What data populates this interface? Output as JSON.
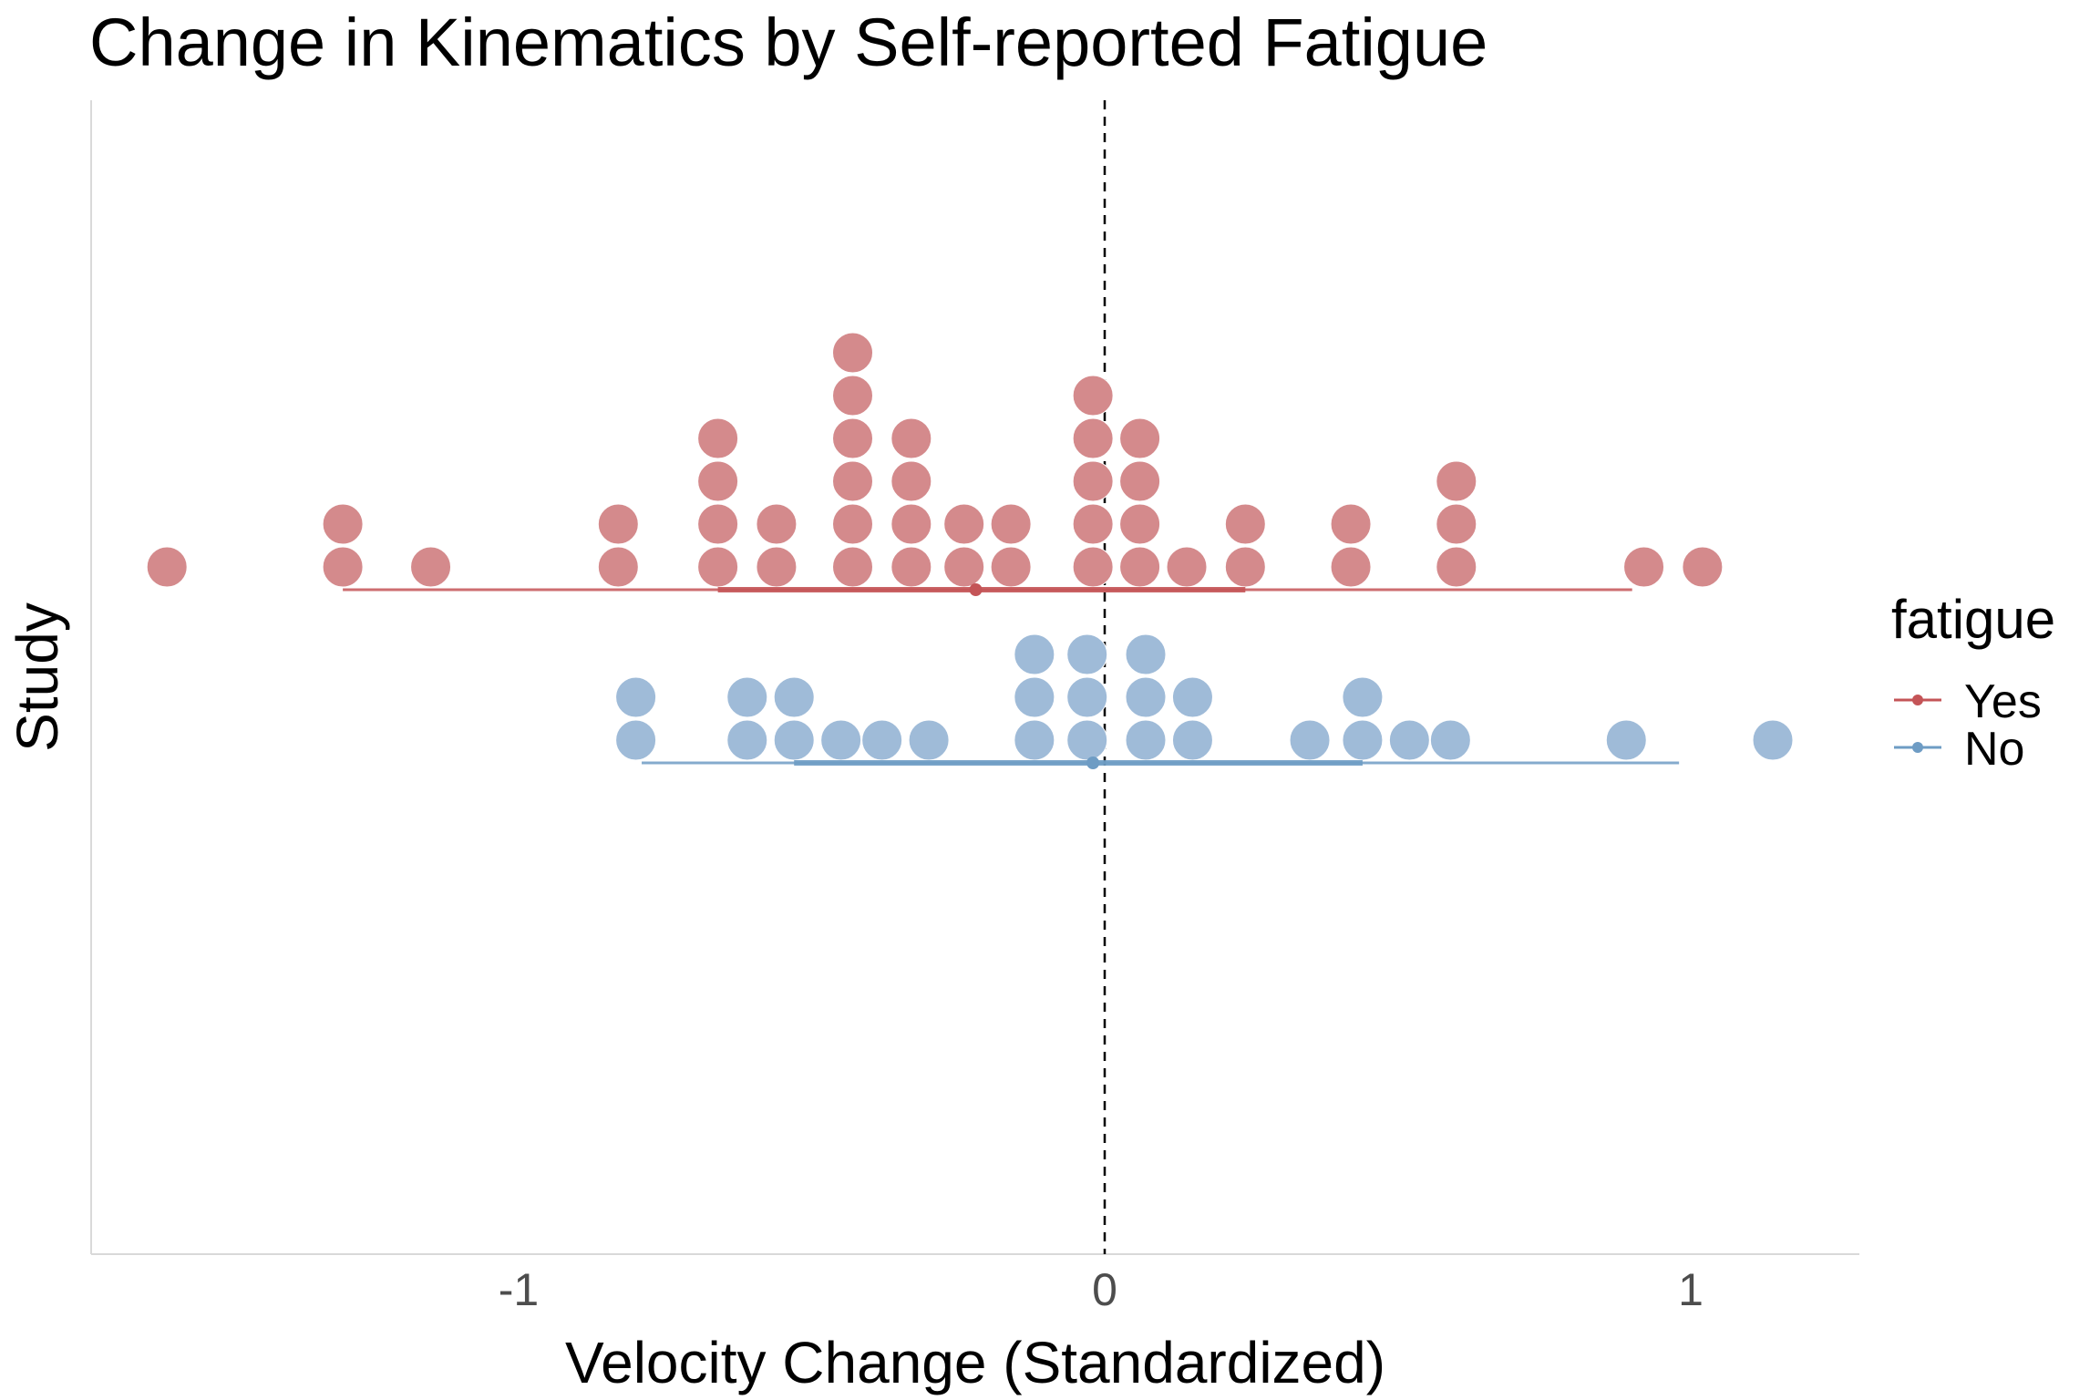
{
  "chart_data": {
    "type": "dotplot",
    "title": "Change in Kinematics by Self-reported Fatigue",
    "xlabel": "Velocity Change (Standardized)",
    "ylabel": "Study",
    "xlim": [
      -1.73,
      1.27
    ],
    "x_ticks": [
      -1,
      0,
      1
    ],
    "x_tick_labels": [
      "-1",
      "0",
      "1"
    ],
    "reference_line": {
      "x": 0,
      "style": "dashed"
    },
    "grid": false,
    "legend": {
      "title": "fatigue",
      "position": "right"
    },
    "colors": {
      "Yes": "#d48a8c",
      "No": "#9fbbd8",
      "Yes_line": "#c45457",
      "No_line": "#6e9cc4"
    },
    "series": [
      {
        "name": "Yes",
        "summary": {
          "mean": -0.22,
          "inner": [
            -0.66,
            0.24
          ],
          "outer": [
            -1.3,
            0.9
          ]
        },
        "dots": [
          {
            "x": -1.6,
            "count": 1
          },
          {
            "x": -1.3,
            "count": 2
          },
          {
            "x": -1.15,
            "count": 1
          },
          {
            "x": -0.83,
            "count": 2
          },
          {
            "x": -0.66,
            "count": 4
          },
          {
            "x": -0.56,
            "count": 2
          },
          {
            "x": -0.43,
            "count": 6
          },
          {
            "x": -0.33,
            "count": 4
          },
          {
            "x": -0.24,
            "count": 2
          },
          {
            "x": -0.16,
            "count": 2
          },
          {
            "x": -0.02,
            "count": 5
          },
          {
            "x": 0.06,
            "count": 4
          },
          {
            "x": 0.14,
            "count": 1
          },
          {
            "x": 0.24,
            "count": 2
          },
          {
            "x": 0.42,
            "count": 2
          },
          {
            "x": 0.6,
            "count": 3
          },
          {
            "x": 0.92,
            "count": 1
          },
          {
            "x": 1.02,
            "count": 1
          }
        ]
      },
      {
        "name": "No",
        "summary": {
          "mean": -0.02,
          "inner": [
            -0.53,
            0.44
          ],
          "outer": [
            -0.79,
            0.98
          ]
        },
        "dots": [
          {
            "x": -0.8,
            "count": 2
          },
          {
            "x": -0.61,
            "count": 2
          },
          {
            "x": -0.53,
            "count": 2
          },
          {
            "x": -0.45,
            "count": 1
          },
          {
            "x": -0.38,
            "count": 1
          },
          {
            "x": -0.3,
            "count": 1
          },
          {
            "x": -0.12,
            "count": 3
          },
          {
            "x": -0.03,
            "count": 3
          },
          {
            "x": 0.07,
            "count": 3
          },
          {
            "x": 0.15,
            "count": 2
          },
          {
            "x": 0.35,
            "count": 1
          },
          {
            "x": 0.44,
            "count": 2
          },
          {
            "x": 0.52,
            "count": 1
          },
          {
            "x": 0.59,
            "count": 1
          },
          {
            "x": 0.89,
            "count": 1
          },
          {
            "x": 1.14,
            "count": 1
          }
        ]
      }
    ]
  }
}
